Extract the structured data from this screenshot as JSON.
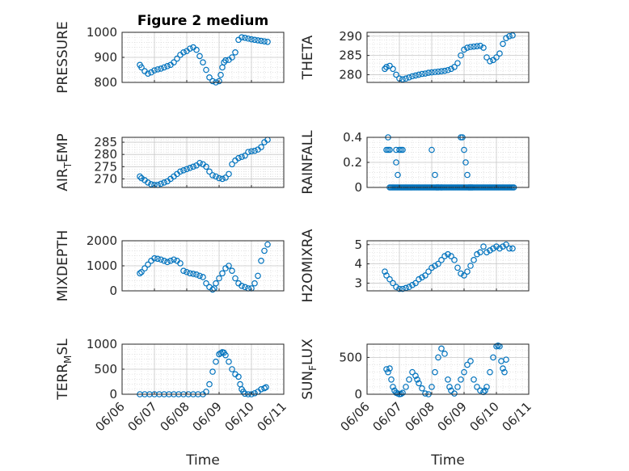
{
  "figure": {
    "title": "Figure 2 medium",
    "xlabel": "Time",
    "xtick_labels": [
      "06/06",
      "06/07",
      "06/08",
      "06/09",
      "06/10",
      "06/11"
    ],
    "marker_color": "#0072BD"
  },
  "chart_data": [
    {
      "type": "scatter",
      "marker": "circle-open",
      "title": "Figure 2 medium",
      "ylabel": "PRESSURE",
      "ylabel_sub": "",
      "x_unit": "days since 06/06",
      "xlim": [
        0,
        5
      ],
      "ylim": [
        800,
        1000
      ],
      "yticks": [
        800,
        900,
        1000
      ],
      "grid": true,
      "minor_grid": true,
      "show_xticklabels": false,
      "series": [
        {
          "x": [
            0.55,
            0.6,
            0.7,
            0.8,
            0.9,
            1.0,
            1.1,
            1.2,
            1.3,
            1.4,
            1.5,
            1.6,
            1.7,
            1.8,
            1.9,
            2.0,
            2.1,
            2.2,
            2.3,
            2.4,
            2.5,
            2.6,
            2.7,
            2.8,
            2.9,
            3.0,
            3.05,
            3.1,
            3.15,
            3.2,
            3.3,
            3.4,
            3.5,
            3.6,
            3.7,
            3.8,
            3.9,
            4.0,
            4.1,
            4.2,
            4.3,
            4.4,
            4.5
          ],
          "y": [
            870,
            860,
            845,
            835,
            840,
            848,
            852,
            855,
            860,
            865,
            870,
            880,
            895,
            910,
            920,
            925,
            935,
            940,
            930,
            905,
            880,
            850,
            820,
            805,
            800,
            805,
            830,
            860,
            880,
            888,
            890,
            900,
            920,
            970,
            980,
            978,
            975,
            972,
            970,
            968,
            966,
            964,
            962
          ]
        }
      ]
    },
    {
      "type": "scatter",
      "marker": "circle-open",
      "title": "",
      "ylabel": "THETA",
      "ylabel_sub": "",
      "x_unit": "days since 06/06",
      "xlim": [
        0,
        5
      ],
      "ylim": [
        278,
        291
      ],
      "yticks": [
        280,
        285,
        290
      ],
      "grid": true,
      "minor_grid": true,
      "show_xticklabels": false,
      "series": [
        {
          "x": [
            0.55,
            0.6,
            0.7,
            0.8,
            0.9,
            1.0,
            1.1,
            1.2,
            1.3,
            1.4,
            1.5,
            1.6,
            1.7,
            1.8,
            1.9,
            2.0,
            2.1,
            2.2,
            2.3,
            2.4,
            2.5,
            2.6,
            2.7,
            2.8,
            2.9,
            3.0,
            3.1,
            3.2,
            3.3,
            3.4,
            3.5,
            3.6,
            3.7,
            3.8,
            3.9,
            4.0,
            4.1,
            4.2,
            4.3,
            4.4,
            4.5
          ],
          "y": [
            281.5,
            282,
            282.3,
            281.5,
            280,
            279,
            278.8,
            279,
            279.3,
            279.6,
            279.8,
            280,
            280.2,
            280.3,
            280.5,
            280.6,
            280.7,
            280.8,
            280.9,
            281,
            281.2,
            281.5,
            282,
            283,
            285,
            286.5,
            287,
            287.2,
            287.3,
            287.4,
            287.5,
            287,
            284.5,
            283.5,
            283.8,
            284.5,
            285.5,
            288,
            289.5,
            290,
            290.2
          ]
        }
      ]
    },
    {
      "type": "scatter",
      "marker": "circle-open",
      "title": "",
      "ylabel": "AIR",
      "ylabel_sub": "T",
      "ylabel_after": "EMP",
      "x_unit": "days since 06/06",
      "xlim": [
        0,
        5
      ],
      "ylim": [
        266.5,
        287
      ],
      "yticks": [
        270,
        275,
        280,
        285
      ],
      "grid": true,
      "minor_grid": true,
      "show_xticklabels": false,
      "series": [
        {
          "x": [
            0.55,
            0.6,
            0.7,
            0.8,
            0.9,
            1.0,
            1.1,
            1.2,
            1.3,
            1.4,
            1.5,
            1.6,
            1.7,
            1.8,
            1.9,
            2.0,
            2.1,
            2.2,
            2.3,
            2.4,
            2.5,
            2.6,
            2.7,
            2.8,
            2.9,
            3.0,
            3.1,
            3.2,
            3.3,
            3.4,
            3.5,
            3.6,
            3.7,
            3.8,
            3.9,
            4.0,
            4.1,
            4.2,
            4.3,
            4.4,
            4.5
          ],
          "y": [
            271,
            270.3,
            269.5,
            268.5,
            267.8,
            267.5,
            267.5,
            268,
            268.5,
            269,
            270,
            271,
            272,
            273,
            273.5,
            274,
            274.5,
            275,
            275.5,
            276.5,
            276,
            275,
            273,
            271.5,
            271,
            270.3,
            270,
            270.5,
            272,
            276,
            277.5,
            278.5,
            279,
            279.5,
            281,
            281.3,
            281.5,
            282,
            283,
            285,
            286
          ]
        }
      ]
    },
    {
      "type": "scatter",
      "marker": "circle-open",
      "title": "",
      "ylabel": "RAINFALL",
      "ylabel_sub": "",
      "x_unit": "days since 06/06",
      "xlim": [
        0,
        5
      ],
      "ylim": [
        0,
        0.4
      ],
      "yticks": [
        0,
        0.2,
        0.4
      ],
      "ytick_labels": [
        "0",
        "0.2",
        "0.4"
      ],
      "grid": true,
      "minor_grid": true,
      "show_xticklabels": false,
      "baseline": {
        "from": 0.7,
        "to": 4.55,
        "step": 0.04,
        "y": 0
      },
      "series": [
        {
          "x": [
            0.6,
            0.65,
            0.65,
            0.7,
            0.9,
            0.9,
            0.95,
            1.0,
            1.05,
            1.1,
            2.0,
            2.1,
            2.15,
            2.2,
            2.3,
            2.9,
            2.95,
            3.0,
            3.05,
            3.1,
            3.15,
            3.2,
            3.25
          ],
          "y": [
            0.3,
            0.3,
            0.4,
            0.3,
            0.3,
            0.2,
            0.1,
            0.3,
            0.3,
            0.3,
            0.3,
            0.1,
            0.0,
            0.0,
            0.0,
            0.4,
            0.4,
            0.3,
            0.2,
            0.1,
            0.0,
            0.0,
            0.0
          ]
        }
      ]
    },
    {
      "type": "scatter",
      "marker": "circle-open",
      "title": "",
      "ylabel": "MIXDEPTH",
      "ylabel_sub": "",
      "x_unit": "days since 06/06",
      "xlim": [
        0,
        5
      ],
      "ylim": [
        0,
        2000
      ],
      "yticks": [
        0,
        1000,
        2000
      ],
      "grid": true,
      "minor_grid": true,
      "show_xticklabels": false,
      "series": [
        {
          "x": [
            0.55,
            0.6,
            0.7,
            0.8,
            0.9,
            1.0,
            1.1,
            1.2,
            1.3,
            1.4,
            1.5,
            1.6,
            1.7,
            1.8,
            1.9,
            2.0,
            2.1,
            2.2,
            2.3,
            2.4,
            2.5,
            2.6,
            2.7,
            2.8,
            2.85,
            2.9,
            3.0,
            3.1,
            3.2,
            3.3,
            3.4,
            3.5,
            3.6,
            3.7,
            3.8,
            3.9,
            4.0,
            4.1,
            4.2,
            4.3,
            4.4,
            4.5
          ],
          "y": [
            700,
            750,
            900,
            1050,
            1200,
            1300,
            1280,
            1250,
            1200,
            1150,
            1200,
            1250,
            1200,
            1100,
            800,
            750,
            700,
            680,
            650,
            600,
            550,
            300,
            150,
            50,
            100,
            300,
            500,
            700,
            900,
            1000,
            800,
            500,
            300,
            200,
            150,
            100,
            100,
            300,
            600,
            1200,
            1600,
            1850
          ]
        }
      ]
    },
    {
      "type": "scatter",
      "marker": "circle-open",
      "title": "",
      "ylabel": "H2OMIXRA",
      "ylabel_sub": "",
      "x_unit": "days since 06/06",
      "xlim": [
        0,
        5
      ],
      "ylim": [
        2.6,
        5.2
      ],
      "yticks": [
        3,
        4,
        5
      ],
      "grid": true,
      "minor_grid": true,
      "show_xticklabels": false,
      "series": [
        {
          "x": [
            0.55,
            0.6,
            0.7,
            0.8,
            0.9,
            1.0,
            1.1,
            1.2,
            1.3,
            1.4,
            1.5,
            1.6,
            1.7,
            1.8,
            1.9,
            2.0,
            2.1,
            2.2,
            2.3,
            2.4,
            2.5,
            2.6,
            2.7,
            2.8,
            2.9,
            3.0,
            3.1,
            3.2,
            3.3,
            3.4,
            3.5,
            3.6,
            3.7,
            3.8,
            3.9,
            4.0,
            4.1,
            4.2,
            4.3,
            4.4,
            4.5
          ],
          "y": [
            3.6,
            3.4,
            3.2,
            3.0,
            2.8,
            2.7,
            2.7,
            2.75,
            2.8,
            2.9,
            3.0,
            3.2,
            3.3,
            3.4,
            3.6,
            3.8,
            3.9,
            4.0,
            4.2,
            4.4,
            4.5,
            4.4,
            4.2,
            3.8,
            3.5,
            3.4,
            3.6,
            3.9,
            4.2,
            4.5,
            4.6,
            4.9,
            4.6,
            4.7,
            4.8,
            4.9,
            4.8,
            4.9,
            5.0,
            4.8,
            4.8
          ]
        }
      ]
    },
    {
      "type": "scatter",
      "marker": "circle-open",
      "title": "",
      "ylabel": "TERR",
      "ylabel_sub": "M",
      "ylabel_after": "SL",
      "x_unit": "days since 06/06",
      "xlim": [
        0,
        5
      ],
      "ylim": [
        0,
        1000
      ],
      "yticks": [
        0,
        500,
        1000
      ],
      "grid": true,
      "minor_grid": true,
      "show_xticklabels": true,
      "series": [
        {
          "x": [
            0.55,
            0.7,
            0.85,
            1.0,
            1.15,
            1.3,
            1.45,
            1.6,
            1.75,
            1.9,
            2.05,
            2.2,
            2.35,
            2.5,
            2.6,
            2.7,
            2.8,
            2.9,
            3.0,
            3.05,
            3.1,
            3.15,
            3.2,
            3.3,
            3.4,
            3.5,
            3.6,
            3.65,
            3.7,
            3.75,
            3.8,
            3.9,
            4.0,
            4.1,
            4.2,
            4.3,
            4.4,
            4.45
          ],
          "y": [
            0,
            0,
            0,
            0,
            0,
            0,
            0,
            0,
            0,
            0,
            0,
            0,
            0,
            0,
            50,
            200,
            450,
            650,
            800,
            820,
            840,
            830,
            780,
            650,
            500,
            400,
            350,
            200,
            100,
            50,
            10,
            0,
            0,
            20,
            50,
            100,
            120,
            140
          ]
        }
      ]
    },
    {
      "type": "scatter",
      "marker": "circle-open",
      "title": "",
      "ylabel": "SUN",
      "ylabel_sub": "F",
      "ylabel_after": "LUX",
      "x_unit": "days since 06/06",
      "xlim": [
        0,
        5
      ],
      "ylim": [
        0,
        680
      ],
      "yticks": [
        0,
        500
      ],
      "grid": true,
      "minor_grid": true,
      "show_xticklabels": true,
      "series": [
        {
          "x": [
            0.6,
            0.65,
            0.7,
            0.75,
            0.8,
            0.85,
            0.9,
            0.95,
            1.0,
            1.05,
            1.1,
            1.2,
            1.3,
            1.4,
            1.5,
            1.55,
            1.6,
            1.7,
            1.8,
            1.9,
            2.0,
            2.1,
            2.2,
            2.3,
            2.4,
            2.5,
            2.55,
            2.6,
            2.7,
            2.8,
            2.9,
            3.0,
            3.1,
            3.2,
            3.3,
            3.4,
            3.5,
            3.6,
            3.65,
            3.7,
            3.8,
            3.9,
            4.0,
            4.05,
            4.1,
            4.15,
            4.2,
            4.25,
            4.3
          ],
          "y": [
            340,
            300,
            350,
            200,
            100,
            50,
            20,
            10,
            0,
            5,
            20,
            100,
            200,
            300,
            250,
            200,
            150,
            80,
            10,
            0,
            100,
            300,
            500,
            620,
            550,
            200,
            100,
            50,
            10,
            100,
            200,
            300,
            400,
            450,
            200,
            100,
            50,
            30,
            50,
            100,
            300,
            500,
            650,
            660,
            650,
            450,
            350,
            300,
            470
          ]
        }
      ]
    }
  ]
}
